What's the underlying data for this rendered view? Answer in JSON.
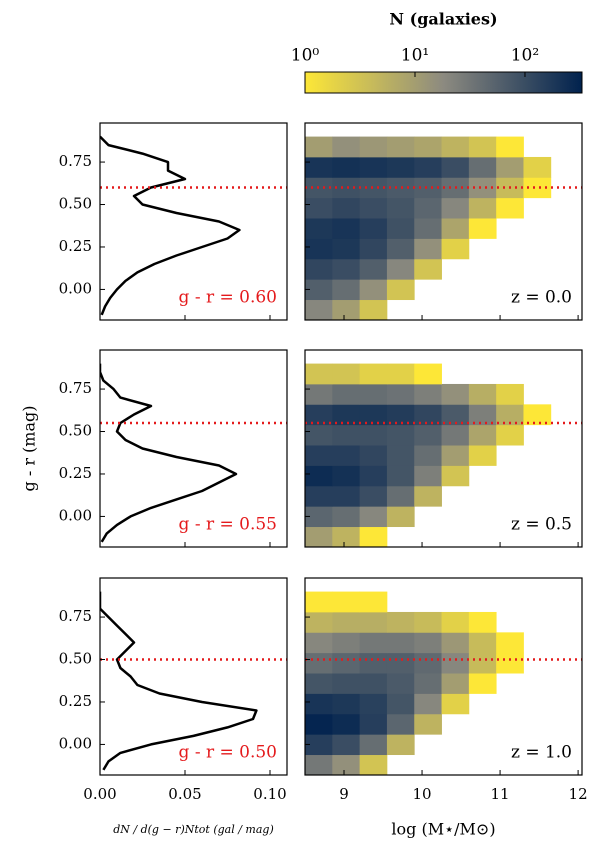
{
  "chart_data": [
    {
      "type": "line",
      "annotation": "g - r = 0.60",
      "hline": 0.6,
      "color": "#000000",
      "hline_color": "#e41a1c",
      "xlim": [
        0,
        0.11
      ],
      "xticks": [
        {
          "value": 0,
          "label": "0.00"
        },
        {
          "value": 0.05,
          "label": "0.05"
        },
        {
          "value": 0.1,
          "label": "0.10"
        }
      ],
      "ylim": [
        -0.18,
        0.98
      ],
      "yticks": [
        {
          "value": 0,
          "label": "0.00"
        },
        0.25,
        {
          "value": 0.5,
          "label": "0.50"
        },
        0.75
      ],
      "y": [
        -0.15,
        -0.1,
        -0.05,
        0,
        0.05,
        0.1,
        0.15,
        0.2,
        0.25,
        0.3,
        0.35,
        0.4,
        0.45,
        0.5,
        0.55,
        0.6,
        0.65,
        0.7,
        0.75,
        0.8,
        0.85,
        0.9
      ],
      "values": [
        0.001,
        0.003,
        0.006,
        0.01,
        0.015,
        0.022,
        0.032,
        0.045,
        0.06,
        0.075,
        0.082,
        0.07,
        0.045,
        0.025,
        0.02,
        0.03,
        0.05,
        0.04,
        0.04,
        0.025,
        0.005,
        0.0
      ]
    },
    {
      "type": "line",
      "annotation": "g - r = 0.55",
      "hline": 0.55,
      "color": "#000000",
      "hline_color": "#e41a1c",
      "ylabel": "g - r (mag)",
      "xlim": [
        0,
        0.11
      ],
      "xticks": [
        {
          "value": 0,
          "label": "0.00"
        },
        {
          "value": 0.05,
          "label": "0.05"
        },
        {
          "value": 0.1,
          "label": "0.10"
        }
      ],
      "ylim": [
        -0.18,
        0.98
      ],
      "yticks": [
        {
          "value": 0,
          "label": "0.00"
        },
        0.25,
        {
          "value": 0.5,
          "label": "0.50"
        },
        0.75
      ],
      "y": [
        -0.15,
        -0.1,
        -0.05,
        0,
        0.05,
        0.1,
        0.15,
        0.2,
        0.25,
        0.3,
        0.35,
        0.4,
        0.45,
        0.5,
        0.55,
        0.6,
        0.65,
        0.7,
        0.75,
        0.8,
        0.85,
        0.9
      ],
      "values": [
        0.001,
        0.004,
        0.01,
        0.018,
        0.03,
        0.045,
        0.06,
        0.07,
        0.08,
        0.07,
        0.045,
        0.025,
        0.015,
        0.01,
        0.012,
        0.02,
        0.03,
        0.012,
        0.008,
        0.002,
        0.0,
        0.0
      ]
    },
    {
      "type": "line",
      "annotation": "g - r = 0.50",
      "hline": 0.5,
      "color": "#000000",
      "hline_color": "#e41a1c",
      "xlabel": "dN / d(g − r)Ntot (gal / mag)",
      "xlim": [
        0,
        0.11
      ],
      "xticks": [
        {
          "value": 0,
          "label": "0.00"
        },
        {
          "value": 0.05,
          "label": "0.05"
        },
        {
          "value": 0.1,
          "label": "0.10"
        }
      ],
      "ylim": [
        -0.18,
        0.98
      ],
      "yticks": [
        {
          "value": 0,
          "label": "0.00"
        },
        0.25,
        {
          "value": 0.5,
          "label": "0.50"
        },
        0.75
      ],
      "y": [
        -0.15,
        -0.1,
        -0.05,
        0,
        0.05,
        0.1,
        0.15,
        0.2,
        0.25,
        0.3,
        0.35,
        0.4,
        0.45,
        0.5,
        0.55,
        0.6,
        0.65,
        0.7,
        0.75,
        0.8,
        0.85,
        0.9
      ],
      "values": [
        0.002,
        0.005,
        0.012,
        0.03,
        0.055,
        0.075,
        0.09,
        0.092,
        0.06,
        0.035,
        0.022,
        0.018,
        0.012,
        0.01,
        0.015,
        0.02,
        0.015,
        0.01,
        0.005,
        0.0,
        0.0,
        0.0
      ]
    },
    {
      "type": "heatmap",
      "annotation": "z = 0.0",
      "hline": 0.6,
      "hline_color": "#e41a1c",
      "colorbar": {
        "label": "N (galaxies)",
        "log": true,
        "lim": [
          1,
          330
        ],
        "colors": [
          "#fde737",
          "#8c8a80",
          "#00224e"
        ],
        "ticks": [
          {
            "value": 1,
            "label": "10⁰"
          },
          {
            "value": 10,
            "label": "10¹"
          },
          {
            "value": 100,
            "label": "10²"
          }
        ]
      },
      "xlim": [
        8.5,
        12.05
      ],
      "xticks": [
        9,
        10,
        11,
        12
      ],
      "ylim": [
        -0.18,
        0.98
      ],
      "yticks": [
        0,
        0.25,
        0.5,
        0.75
      ],
      "xbins": [
        8.5,
        8.85,
        9.2,
        9.55,
        9.9,
        10.25,
        10.6,
        10.95,
        11.3,
        11.65,
        12.0
      ],
      "ybins": [
        -0.18,
        -0.06,
        0.06,
        0.18,
        0.3,
        0.42,
        0.54,
        0.66,
        0.78,
        0.9
      ],
      "values": [
        [
          20,
          10,
          3,
          null,
          null,
          null,
          null,
          null,
          null,
          null
        ],
        [
          60,
          40,
          15,
          3,
          null,
          null,
          null,
          null,
          null,
          null
        ],
        [
          120,
          100,
          60,
          20,
          3,
          null,
          null,
          null,
          null,
          null
        ],
        [
          200,
          180,
          120,
          60,
          15,
          2,
          null,
          null,
          null,
          null
        ],
        [
          180,
          200,
          150,
          90,
          40,
          8,
          1,
          null,
          null,
          null
        ],
        [
          100,
          120,
          100,
          80,
          50,
          20,
          5,
          1,
          null,
          null
        ],
        [
          80,
          90,
          80,
          70,
          60,
          40,
          15,
          4,
          1,
          null
        ],
        [
          200,
          220,
          200,
          180,
          150,
          100,
          40,
          10,
          2,
          null
        ],
        [
          10,
          15,
          12,
          10,
          8,
          5,
          3,
          1,
          null,
          null
        ]
      ]
    },
    {
      "type": "heatmap",
      "annotation": "z = 0.5",
      "hline": 0.55,
      "hline_color": "#e41a1c",
      "xlim": [
        8.5,
        12.05
      ],
      "xticks": [
        9,
        10,
        11,
        12
      ],
      "ylim": [
        -0.18,
        0.98
      ],
      "yticks": [
        0,
        0.25,
        0.5,
        0.75
      ],
      "xbins": [
        8.5,
        8.85,
        9.2,
        9.55,
        9.9,
        10.25,
        10.6,
        10.95,
        11.3,
        11.65,
        12.0
      ],
      "ybins": [
        -0.18,
        -0.06,
        0.06,
        0.18,
        0.3,
        0.42,
        0.54,
        0.66,
        0.78,
        0.9
      ],
      "values": [
        [
          10,
          5,
          1,
          null,
          null,
          null,
          null,
          null,
          null,
          null
        ],
        [
          50,
          40,
          20,
          5,
          null,
          null,
          null,
          null,
          null,
          null
        ],
        [
          150,
          150,
          100,
          40,
          5,
          null,
          null,
          null,
          null,
          null
        ],
        [
          250,
          220,
          150,
          80,
          25,
          3,
          null,
          null,
          null,
          null
        ],
        [
          150,
          150,
          120,
          80,
          40,
          10,
          2,
          null,
          null,
          null
        ],
        [
          80,
          90,
          90,
          80,
          60,
          30,
          8,
          2,
          null,
          null
        ],
        [
          150,
          180,
          180,
          160,
          120,
          70,
          25,
          6,
          1,
          null
        ],
        [
          30,
          40,
          40,
          35,
          25,
          15,
          6,
          2,
          null,
          null
        ],
        [
          3,
          3,
          2,
          2,
          1,
          null,
          null,
          null,
          null,
          null
        ]
      ]
    },
    {
      "type": "heatmap",
      "annotation": "z = 1.0",
      "hline": 0.5,
      "hline_color": "#e41a1c",
      "xlabel": "log (M⋆/M⊙)",
      "xlim": [
        8.5,
        12.05
      ],
      "xticks": [
        9,
        10,
        11,
        12
      ],
      "ylim": [
        -0.18,
        0.98
      ],
      "yticks": [
        0,
        0.25,
        0.5,
        0.75
      ],
      "xbins": [
        8.5,
        8.85,
        9.2,
        9.55,
        9.9,
        10.25,
        10.6,
        10.95,
        11.3,
        11.65,
        12.0
      ],
      "ybins": [
        -0.18,
        -0.06,
        0.06,
        0.18,
        0.3,
        0.42,
        0.54,
        0.66,
        0.78,
        0.9
      ],
      "values": [
        [
          30,
          15,
          3,
          null,
          null,
          null,
          null,
          null,
          null,
          null
        ],
        [
          150,
          100,
          40,
          5,
          null,
          null,
          null,
          null,
          null,
          null
        ],
        [
          300,
          250,
          150,
          50,
          5,
          null,
          null,
          null,
          null,
          null
        ],
        [
          200,
          180,
          140,
          80,
          20,
          2,
          null,
          null,
          null,
          null
        ],
        [
          80,
          90,
          90,
          70,
          40,
          10,
          1,
          null,
          null,
          null
        ],
        [
          40,
          50,
          60,
          60,
          45,
          20,
          4,
          1,
          null,
          null
        ],
        [
          20,
          25,
          30,
          30,
          25,
          12,
          4,
          1,
          null,
          null
        ],
        [
          5,
          6,
          6,
          5,
          4,
          2,
          1,
          null,
          null,
          null
        ],
        [
          1,
          1,
          1,
          null,
          null,
          null,
          null,
          null,
          null,
          null
        ]
      ]
    }
  ]
}
